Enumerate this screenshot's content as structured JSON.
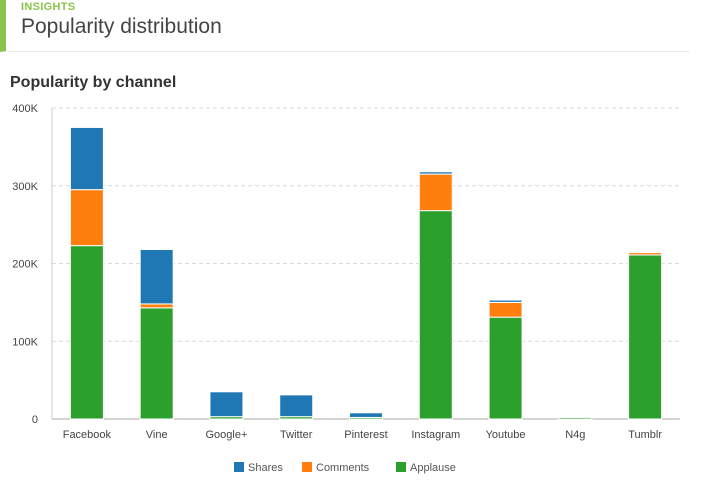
{
  "header": {
    "eyebrow": "INSIGHTS",
    "title": "Popularity distribution"
  },
  "colors": {
    "accent": "#8bc34a",
    "shares": "#1f77b4",
    "comments": "#ff7f0e",
    "applause": "#2ca02c"
  },
  "chart_data": {
    "type": "bar",
    "stacked": true,
    "title": "Popularity by channel",
    "xlabel": "",
    "ylabel": "",
    "ylim": [
      0,
      400000
    ],
    "yticks": [
      {
        "value": 0,
        "label": "0"
      },
      {
        "value": 100000,
        "label": "100K"
      },
      {
        "value": 200000,
        "label": "200K"
      },
      {
        "value": 300000,
        "label": "300K"
      },
      {
        "value": 400000,
        "label": "400K"
      }
    ],
    "grid": true,
    "legend_position": "bottom",
    "categories": [
      "Facebook",
      "Vine",
      "Google+",
      "Twitter",
      "Pinterest",
      "Instagram",
      "Youtube",
      "N4g",
      "Tumblr"
    ],
    "series": [
      {
        "name": "Applause",
        "color": "#2ca02c",
        "values": [
          223000,
          143000,
          3000,
          3000,
          2000,
          268000,
          131000,
          2000,
          211000
        ]
      },
      {
        "name": "Comments",
        "color": "#ff7f0e",
        "values": [
          72000,
          5000,
          0,
          0,
          0,
          47000,
          19000,
          0,
          3000
        ]
      },
      {
        "name": "Shares",
        "color": "#1f77b4",
        "values": [
          80000,
          70000,
          32000,
          28000,
          6000,
          3000,
          3000,
          0,
          0
        ]
      }
    ],
    "legend": [
      {
        "name": "Shares",
        "color": "#1f77b4"
      },
      {
        "name": "Comments",
        "color": "#ff7f0e"
      },
      {
        "name": "Applause",
        "color": "#2ca02c"
      }
    ]
  }
}
